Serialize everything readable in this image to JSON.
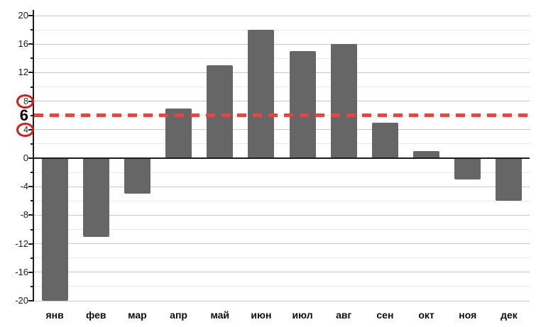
{
  "chart_data": {
    "type": "bar",
    "title": "",
    "xlabel": "",
    "ylabel": "",
    "categories": [
      "янв",
      "фев",
      "мар",
      "апр",
      "май",
      "июн",
      "июл",
      "авг",
      "сен",
      "окт",
      "ноя",
      "дек"
    ],
    "values": [
      -20,
      -11,
      -5,
      7,
      13,
      18,
      15,
      16,
      5,
      1,
      -3,
      -6
    ],
    "ylim": [
      -20,
      20
    ],
    "y_major_tick_step": 4,
    "y_minor_tick_step": 2,
    "y_tick_labels": [
      "20",
      "16",
      "12",
      "8",
      "4",
      "0",
      "-4",
      "-8",
      "-12",
      "-16",
      "-20"
    ],
    "grid": true,
    "legend": "none",
    "bar_color": "#666666",
    "axis_color": "#1c1c1c",
    "major_grid_color": "#c6c6c6",
    "minor_grid_color": "#e7e7e7",
    "reference_line": {
      "value": 6,
      "label": "6",
      "style": "dashed",
      "color": "#e8463a"
    },
    "circled_tick_values": [
      8,
      4
    ],
    "circle_color": "#d61c1c"
  }
}
